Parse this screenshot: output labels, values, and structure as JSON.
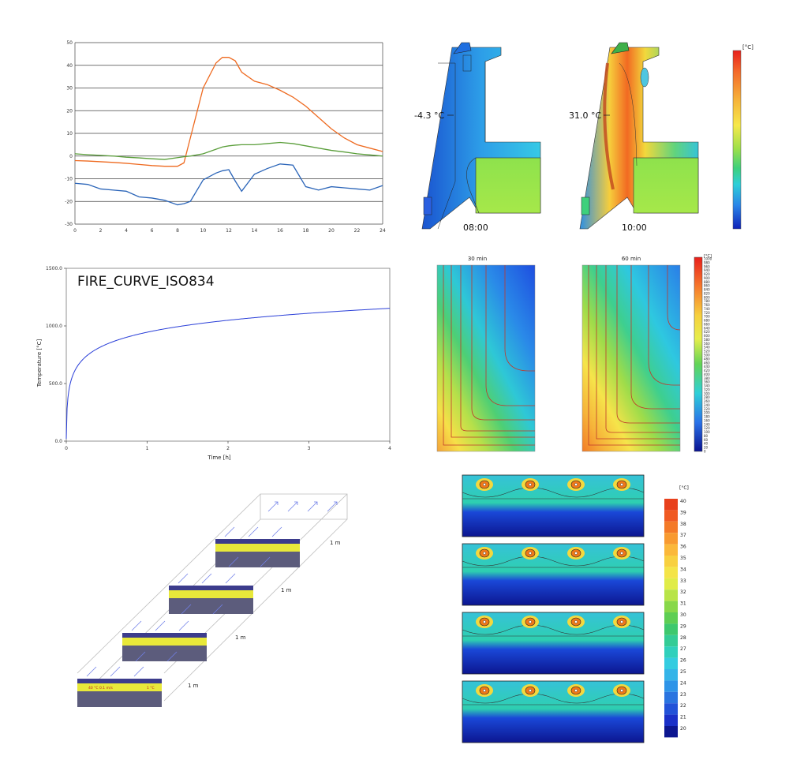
{
  "chart_data": [
    {
      "type": "line",
      "title": "",
      "x": [
        0,
        1,
        2,
        3,
        4,
        5,
        6,
        7,
        8,
        8.5,
        9,
        10,
        11,
        11.5,
        12,
        12.5,
        13,
        14,
        15,
        16,
        17,
        18,
        19,
        20,
        21,
        22,
        23,
        24
      ],
      "xticks": [
        0,
        2,
        4,
        6,
        8,
        10,
        12,
        14,
        16,
        18,
        20,
        22,
        24
      ],
      "yticks": [
        -30,
        -20,
        -10,
        0,
        10,
        20,
        30,
        40,
        50
      ],
      "xlim": [
        0,
        24
      ],
      "ylim": [
        -30,
        50
      ],
      "grid": "horizontal",
      "series": [
        {
          "color": "#ee6a20",
          "values": [
            -2,
            -2.2,
            -2.5,
            -2.8,
            -3.2,
            -3.7,
            -4.2,
            -4.5,
            -4.5,
            -3,
            8,
            30,
            41,
            43.5,
            43.5,
            42,
            37,
            33,
            31.5,
            29,
            26,
            22,
            17,
            12,
            8,
            5,
            3.5,
            2
          ]
        },
        {
          "color": "#5a9e3a",
          "values": [
            1,
            0.6,
            0.3,
            0,
            -0.5,
            -0.8,
            -1.2,
            -1.5,
            -0.7,
            -0.3,
            0,
            1,
            3,
            4,
            4.5,
            4.8,
            5,
            5,
            5.5,
            6,
            5.5,
            4.5,
            3.5,
            2.5,
            1.8,
            1,
            0.5,
            0
          ]
        },
        {
          "color": "#2a64b8",
          "values": [
            -12,
            -12.5,
            -14.5,
            -15,
            -15.5,
            -18,
            -18.5,
            -19.5,
            -21.5,
            -21,
            -20,
            -10.5,
            -7.5,
            -6.5,
            -6,
            -11,
            -15.5,
            -8,
            -5.5,
            -3.5,
            -4,
            -13.5,
            -15,
            -13.5,
            -14,
            -14.5,
            -15,
            -13
          ]
        }
      ]
    },
    {
      "type": "image",
      "annotations": [
        "-4.3 °C",
        "31.0 °C"
      ],
      "labels": [
        "08:00",
        "10:00"
      ],
      "colorbar_unit": "[°C]"
    },
    {
      "type": "line",
      "title": "FIRE_CURVE_ISO834",
      "xlabel": "Time [h]",
      "ylabel": "Temperature [°C]",
      "xlim": [
        0,
        4
      ],
      "ylim": [
        0,
        1500
      ],
      "xticks": [
        "0",
        "1",
        "2",
        "3",
        "4"
      ],
      "yticks": [
        "0.0",
        "500.0",
        "1000.0",
        "1500.0"
      ],
      "series": [
        {
          "color": "#2a3fd8",
          "formula": "20 + 345*log10(8*t*60+1)"
        }
      ]
    },
    {
      "type": "heatmap",
      "labels": [
        "30 min",
        "60 min"
      ],
      "colorbar_unit": "[°C]",
      "colorbar_ticks": [
        "1000",
        "980",
        "960",
        "940",
        "920",
        "900",
        "880",
        "860",
        "840",
        "820",
        "800",
        "780",
        "760",
        "740",
        "720",
        "700",
        "680",
        "660",
        "640",
        "620",
        "600",
        "580",
        "560",
        "540",
        "520",
        "500",
        "480",
        "460",
        "440",
        "420",
        "400",
        "380",
        "360",
        "340",
        "320",
        "300",
        "280",
        "260",
        "240",
        "220",
        "200",
        "180",
        "160",
        "140",
        "120",
        "100",
        "80",
        "60",
        "40",
        "20",
        "0"
      ]
    },
    {
      "type": "diagram",
      "labels": [
        "1 m",
        "1 m",
        "1 m",
        "1 m"
      ],
      "layer_text": [
        "40 °C  0.1 m/s",
        "1 °C"
      ]
    },
    {
      "type": "heatmap",
      "colorbar_unit": "[°C]",
      "colorbar_ticks": [
        "40",
        "39",
        "38",
        "37",
        "36",
        "35",
        "34",
        "33",
        "32",
        "31",
        "30",
        "29",
        "28",
        "27",
        "26",
        "25",
        "24",
        "23",
        "22",
        "21",
        "20"
      ]
    }
  ],
  "colors": {
    "scale_12": [
      "#e8201c",
      "#f2542a",
      "#f7882e",
      "#fbb83a",
      "#f8e84a",
      "#cfe842",
      "#8fd84a",
      "#4fce58",
      "#36d2a8",
      "#38c8e0",
      "#3898e8",
      "#2a5fe0",
      "#1a2fc8",
      "#0c1690"
    ],
    "pipes": "#f07818"
  }
}
